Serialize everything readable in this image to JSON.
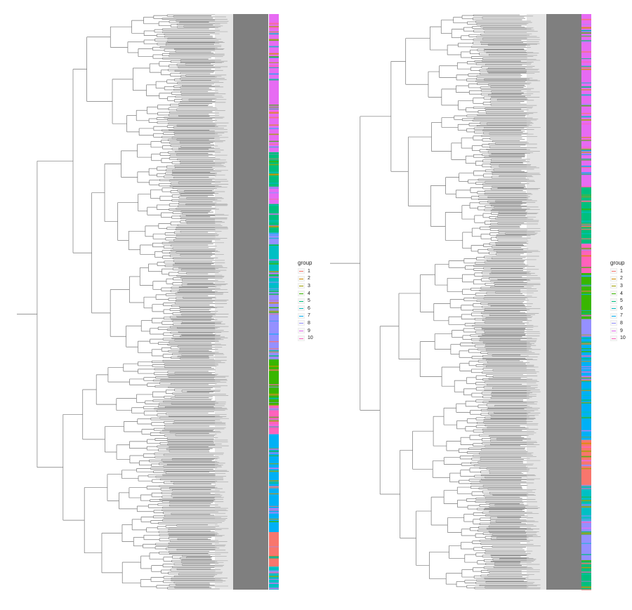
{
  "legend": {
    "title": "group",
    "items": [
      {
        "label": "1",
        "color": "#F8766D"
      },
      {
        "label": "2",
        "color": "#D89000"
      },
      {
        "label": "3",
        "color": "#A3A500"
      },
      {
        "label": "4",
        "color": "#39B600"
      },
      {
        "label": "5",
        "color": "#00BF7D"
      },
      {
        "label": "6",
        "color": "#00BFC4"
      },
      {
        "label": "7",
        "color": "#00B0F6"
      },
      {
        "label": "8",
        "color": "#9590FF"
      },
      {
        "label": "9",
        "color": "#E76BF3"
      },
      {
        "label": "10",
        "color": "#FF62BC"
      }
    ]
  },
  "trees": [
    {
      "name": "left-tree",
      "strip_segments": [
        {
          "from": 0.0,
          "to": 0.24,
          "group": "9"
        },
        {
          "from": 0.24,
          "to": 0.3,
          "group": "5"
        },
        {
          "from": 0.3,
          "to": 0.33,
          "group": "9"
        },
        {
          "from": 0.33,
          "to": 0.38,
          "group": "5"
        },
        {
          "from": 0.38,
          "to": 0.4,
          "group": "8"
        },
        {
          "from": 0.4,
          "to": 0.48,
          "group": "6"
        },
        {
          "from": 0.48,
          "to": 0.6,
          "group": "8"
        },
        {
          "from": 0.6,
          "to": 0.68,
          "group": "4"
        },
        {
          "from": 0.68,
          "to": 0.73,
          "group": "10"
        },
        {
          "from": 0.73,
          "to": 0.9,
          "group": "7"
        },
        {
          "from": 0.9,
          "to": 0.96,
          "group": "1"
        },
        {
          "from": 0.96,
          "to": 1.0,
          "group": "6"
        }
      ]
    },
    {
      "name": "right-tree",
      "strip_segments": [
        {
          "from": 0.0,
          "to": 0.3,
          "group": "9"
        },
        {
          "from": 0.3,
          "to": 0.4,
          "group": "5"
        },
        {
          "from": 0.4,
          "to": 0.45,
          "group": "10"
        },
        {
          "from": 0.45,
          "to": 0.53,
          "group": "4"
        },
        {
          "from": 0.53,
          "to": 0.56,
          "group": "8"
        },
        {
          "from": 0.56,
          "to": 0.74,
          "group": "7"
        },
        {
          "from": 0.74,
          "to": 0.82,
          "group": "1"
        },
        {
          "from": 0.82,
          "to": 0.88,
          "group": "6"
        },
        {
          "from": 0.88,
          "to": 0.95,
          "group": "8"
        },
        {
          "from": 0.95,
          "to": 1.0,
          "group": "5"
        }
      ]
    }
  ]
}
